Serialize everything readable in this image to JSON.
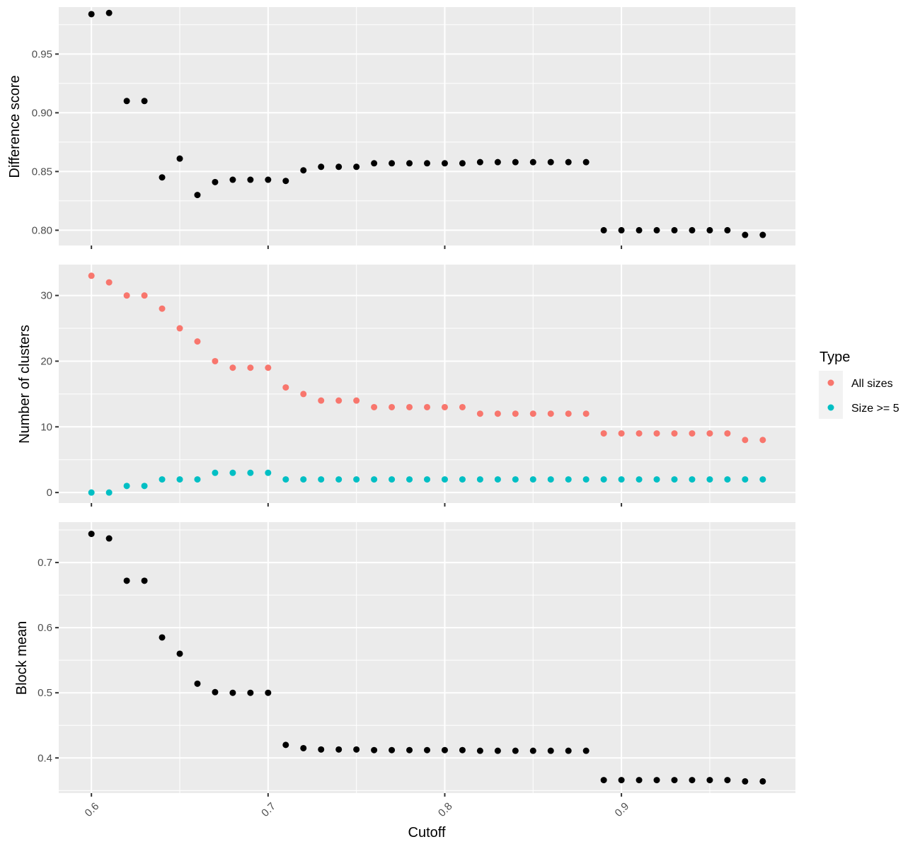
{
  "chart_data": [
    {
      "type": "scatter",
      "panel": "top",
      "xlabel": "",
      "ylabel": "Difference score",
      "ylim": [
        0.787,
        0.99
      ],
      "y_ticks": [
        0.8,
        0.85,
        0.9,
        0.95
      ],
      "y_tick_labels": [
        "0.80",
        "0.85",
        "0.90",
        "0.95"
      ],
      "grid": true,
      "series": [
        {
          "color": "#000000",
          "x": [
            0.6,
            0.61,
            0.62,
            0.63,
            0.64,
            0.65,
            0.66,
            0.67,
            0.68,
            0.69,
            0.7,
            0.71,
            0.72,
            0.73,
            0.74,
            0.75,
            0.76,
            0.77,
            0.78,
            0.79,
            0.8,
            0.81,
            0.82,
            0.83,
            0.84,
            0.85,
            0.86,
            0.87,
            0.88,
            0.89,
            0.9,
            0.91,
            0.92,
            0.93,
            0.94,
            0.95,
            0.96,
            0.97,
            0.98
          ],
          "y": [
            0.984,
            0.985,
            0.91,
            0.91,
            0.845,
            0.861,
            0.83,
            0.841,
            0.843,
            0.843,
            0.843,
            0.842,
            0.851,
            0.854,
            0.854,
            0.854,
            0.857,
            0.857,
            0.857,
            0.857,
            0.857,
            0.857,
            0.858,
            0.858,
            0.858,
            0.858,
            0.858,
            0.858,
            0.858,
            0.8,
            0.8,
            0.8,
            0.8,
            0.8,
            0.8,
            0.8,
            0.8,
            0.796,
            0.796
          ]
        }
      ]
    },
    {
      "type": "scatter",
      "panel": "middle",
      "xlabel": "",
      "ylabel": "Number of clusters",
      "ylim": [
        -1.6,
        34.7
      ],
      "y_ticks": [
        0,
        10,
        20,
        30
      ],
      "y_tick_labels": [
        "0",
        "10",
        "20",
        "30"
      ],
      "grid": true,
      "legend": {
        "title": "Type",
        "position": "right",
        "entries": [
          "All sizes",
          "Size >= 5"
        ]
      },
      "series": [
        {
          "name": "All sizes",
          "color": "#F8766D",
          "x": [
            0.6,
            0.61,
            0.62,
            0.63,
            0.64,
            0.65,
            0.66,
            0.67,
            0.68,
            0.69,
            0.7,
            0.71,
            0.72,
            0.73,
            0.74,
            0.75,
            0.76,
            0.77,
            0.78,
            0.79,
            0.8,
            0.81,
            0.82,
            0.83,
            0.84,
            0.85,
            0.86,
            0.87,
            0.88,
            0.89,
            0.9,
            0.91,
            0.92,
            0.93,
            0.94,
            0.95,
            0.96,
            0.97,
            0.98
          ],
          "y": [
            33,
            32,
            30,
            30,
            28,
            25,
            23,
            20,
            19,
            19,
            19,
            16,
            15,
            14,
            14,
            14,
            13,
            13,
            13,
            13,
            13,
            13,
            12,
            12,
            12,
            12,
            12,
            12,
            12,
            9,
            9,
            9,
            9,
            9,
            9,
            9,
            9,
            8,
            8
          ]
        },
        {
          "name": "Size >= 5",
          "color": "#00BFC4",
          "x": [
            0.6,
            0.61,
            0.62,
            0.63,
            0.64,
            0.65,
            0.66,
            0.67,
            0.68,
            0.69,
            0.7,
            0.71,
            0.72,
            0.73,
            0.74,
            0.75,
            0.76,
            0.77,
            0.78,
            0.79,
            0.8,
            0.81,
            0.82,
            0.83,
            0.84,
            0.85,
            0.86,
            0.87,
            0.88,
            0.89,
            0.9,
            0.91,
            0.92,
            0.93,
            0.94,
            0.95,
            0.96,
            0.97,
            0.98
          ],
          "y": [
            0,
            0,
            1,
            1,
            2,
            2,
            2,
            3,
            3,
            3,
            3,
            2,
            2,
            2,
            2,
            2,
            2,
            2,
            2,
            2,
            2,
            2,
            2,
            2,
            2,
            2,
            2,
            2,
            2,
            2,
            2,
            2,
            2,
            2,
            2,
            2,
            2,
            2,
            2
          ]
        }
      ]
    },
    {
      "type": "scatter",
      "panel": "bottom",
      "xlabel": "Cutoff",
      "ylabel": "Block mean",
      "ylim": [
        0.346,
        0.762
      ],
      "y_ticks": [
        0.4,
        0.5,
        0.6,
        0.7
      ],
      "y_tick_labels": [
        "0.4",
        "0.5",
        "0.6",
        "0.7"
      ],
      "grid": true,
      "series": [
        {
          "color": "#000000",
          "x": [
            0.6,
            0.61,
            0.62,
            0.63,
            0.64,
            0.65,
            0.66,
            0.67,
            0.68,
            0.69,
            0.7,
            0.71,
            0.72,
            0.73,
            0.74,
            0.75,
            0.76,
            0.77,
            0.78,
            0.79,
            0.8,
            0.81,
            0.82,
            0.83,
            0.84,
            0.85,
            0.86,
            0.87,
            0.88,
            0.89,
            0.9,
            0.91,
            0.92,
            0.93,
            0.94,
            0.95,
            0.96,
            0.97,
            0.98
          ],
          "y": [
            0.744,
            0.737,
            0.672,
            0.672,
            0.585,
            0.56,
            0.514,
            0.501,
            0.5,
            0.5,
            0.5,
            0.42,
            0.415,
            0.413,
            0.413,
            0.413,
            0.412,
            0.412,
            0.412,
            0.412,
            0.412,
            0.412,
            0.411,
            0.411,
            0.411,
            0.411,
            0.411,
            0.411,
            0.411,
            0.366,
            0.366,
            0.366,
            0.366,
            0.366,
            0.366,
            0.366,
            0.366,
            0.364,
            0.364
          ]
        }
      ]
    }
  ],
  "x_axis": {
    "range": [
      0.5815,
      0.9985
    ],
    "ticks": [
      0.6,
      0.7,
      0.8,
      0.9
    ],
    "tick_labels": [
      "0.6",
      "0.7",
      "0.8",
      "0.9"
    ]
  }
}
